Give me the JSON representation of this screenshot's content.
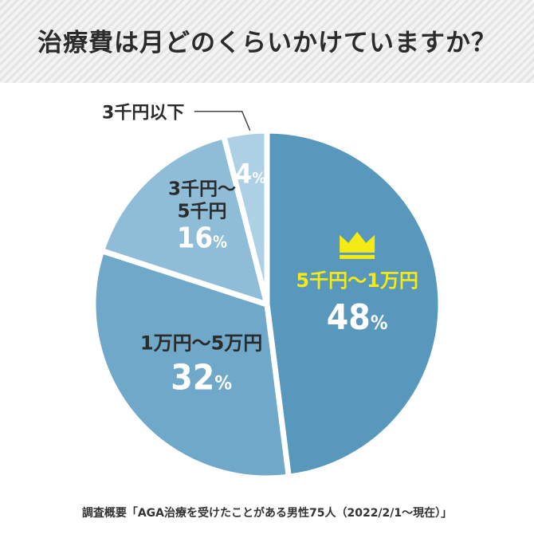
{
  "title": "治療費は月どのくらいかけていますか？",
  "footer": "調査概要「AGA治療を受けたことがある男性75人（2022/2/1～現在）」",
  "colors": {
    "accent_label": "#f5ea14",
    "crown": "#f5ea14",
    "slices": [
      "#5898bd",
      "#6fa8c9",
      "#8fbdd7",
      "#aed0e4"
    ]
  },
  "icons": [
    "crown-icon"
  ],
  "chart_data": {
    "type": "pie",
    "title": "治療費は月どのくらいかけていますか？",
    "slices": [
      {
        "label": "5千円～1万円",
        "value": 48,
        "value_label": "48%"
      },
      {
        "label": "1万円～5万円",
        "value": 32,
        "value_label": "32%"
      },
      {
        "label": "3千円～\n5千円",
        "value": 16,
        "value_label": "16%"
      },
      {
        "label": "3千円以下",
        "value": 4,
        "value_label": "4%"
      }
    ]
  }
}
